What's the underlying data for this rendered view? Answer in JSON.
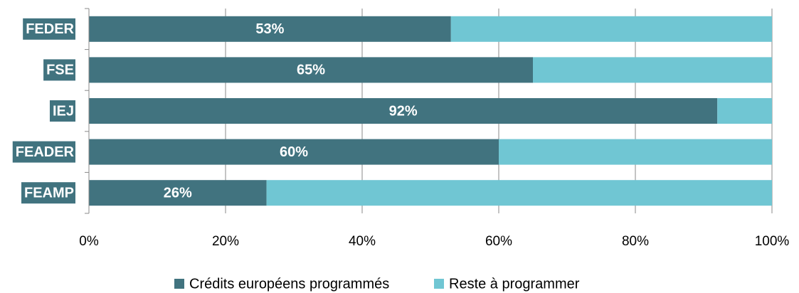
{
  "chart_data": {
    "type": "stacked-barh",
    "categories": [
      "FEDER",
      "FSE",
      "IEJ",
      "FEADER",
      "FEAMP"
    ],
    "series": [
      {
        "name": "Crédits européens programmés",
        "color": "#41737f",
        "values": [
          53,
          65,
          92,
          60,
          26
        ],
        "value_labels": [
          "53%",
          "65%",
          "92%",
          "60%",
          "26%"
        ]
      },
      {
        "name": "Reste à programmer",
        "color": "#70c6d3",
        "values": [
          47,
          35,
          8,
          40,
          74
        ]
      }
    ],
    "xlim": [
      0,
      100
    ],
    "xticks": [
      {
        "value": 0,
        "label": "0%"
      },
      {
        "value": 20,
        "label": "20%"
      },
      {
        "value": 40,
        "label": "40%"
      },
      {
        "value": 60,
        "label": "60%"
      },
      {
        "value": 80,
        "label": "80%"
      },
      {
        "value": 100,
        "label": "100%"
      }
    ],
    "grid": true,
    "legend": "bottom"
  }
}
